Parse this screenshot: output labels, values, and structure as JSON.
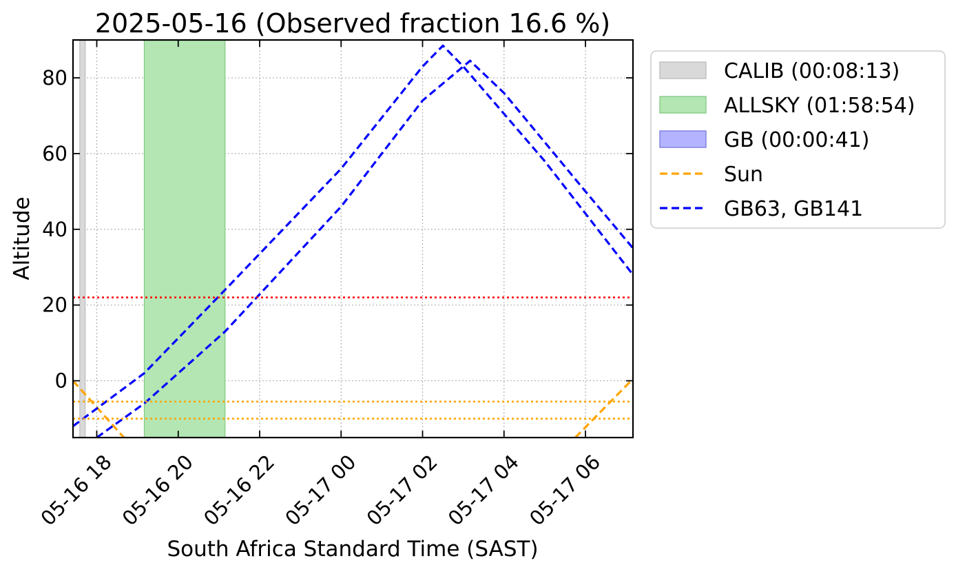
{
  "chart_data": {
    "type": "line",
    "title": "2025-05-16 (Observed fraction 16.6 %)",
    "xlabel": "South Africa Standard Time (SAST)",
    "ylabel": "Altitude",
    "x_unit": "SAST datetime",
    "xlim": [
      "2025-05-16 17:25",
      "2025-05-17 07:10"
    ],
    "ylim": [
      -15,
      90
    ],
    "grid": true,
    "legend_position": "outside-right-top",
    "x_ticks": [
      {
        "value": "2025-05-16 18:00",
        "label": "05-16 18"
      },
      {
        "value": "2025-05-16 20:00",
        "label": "05-16 20"
      },
      {
        "value": "2025-05-16 22:00",
        "label": "05-16 22"
      },
      {
        "value": "2025-05-17 00:00",
        "label": "05-17 00"
      },
      {
        "value": "2025-05-17 02:00",
        "label": "05-17 02"
      },
      {
        "value": "2025-05-17 04:00",
        "label": "05-17 04"
      },
      {
        "value": "2025-05-17 06:00",
        "label": "05-17 06"
      }
    ],
    "y_ticks": [
      {
        "value": 0,
        "label": "0"
      },
      {
        "value": 20,
        "label": "20"
      },
      {
        "value": 40,
        "label": "40"
      },
      {
        "value": 60,
        "label": "60"
      },
      {
        "value": 80,
        "label": "80"
      }
    ],
    "bands": [
      {
        "name": "CALIB (00:08:13)",
        "start": "2025-05-16 17:35",
        "end": "2025-05-16 17:43",
        "color": "#d9d9d9",
        "edge_color": "#bbbbbb"
      },
      {
        "name": "ALLSKY (01:58:54)",
        "start": "2025-05-16 19:10",
        "end": "2025-05-16 21:09",
        "color": "#b3e6b3",
        "edge_color": "#82c882"
      }
    ],
    "legend_only": [
      {
        "name": "GB (00:00:41)",
        "color": "#b3b3ff",
        "edge_color": "#7777dd"
      }
    ],
    "series": [
      {
        "name": "Sun",
        "color": "#ffa500",
        "style": "dashed",
        "segments": [
          [
            {
              "x": "2025-05-16 17:25",
              "y": 0
            },
            {
              "x": "2025-05-16 18:40",
              "y": -15
            }
          ],
          [
            {
              "x": "2025-05-17 05:45",
              "y": -15
            },
            {
              "x": "2025-05-17 07:10",
              "y": 0.5
            }
          ]
        ]
      },
      {
        "name": "GB63, GB141",
        "color": "#0000ff",
        "style": "dashed",
        "segments": [
          [
            {
              "x": "2025-05-16 17:25",
              "y": -12
            },
            {
              "x": "2025-05-16 19:10",
              "y": 2
            },
            {
              "x": "2025-05-16 21:09",
              "y": 24
            },
            {
              "x": "2025-05-17 00:00",
              "y": 56
            },
            {
              "x": "2025-05-17 02:00",
              "y": 83
            },
            {
              "x": "2025-05-17 02:30",
              "y": 88.5
            },
            {
              "x": "2025-05-17 03:00",
              "y": 83
            },
            {
              "x": "2025-05-17 05:00",
              "y": 58
            },
            {
              "x": "2025-05-17 07:10",
              "y": 28
            }
          ],
          [
            {
              "x": "2025-05-16 18:00",
              "y": -15
            },
            {
              "x": "2025-05-16 19:10",
              "y": -6
            },
            {
              "x": "2025-05-16 21:09",
              "y": 13
            },
            {
              "x": "2025-05-17 00:00",
              "y": 46
            },
            {
              "x": "2025-05-17 02:00",
              "y": 74
            },
            {
              "x": "2025-05-17 03:10",
              "y": 84.5
            },
            {
              "x": "2025-05-17 04:00",
              "y": 76
            },
            {
              "x": "2025-05-17 06:00",
              "y": 50
            },
            {
              "x": "2025-05-17 07:10",
              "y": 35
            }
          ]
        ]
      }
    ],
    "reference_lines": [
      {
        "axis": "y",
        "value": 22,
        "color": "#ff0000",
        "style": "dotted"
      },
      {
        "axis": "y",
        "value": -5.5,
        "color": "#ffa500",
        "style": "dotted"
      },
      {
        "axis": "y",
        "value": -10,
        "color": "#ffa500",
        "style": "dotted"
      }
    ]
  }
}
